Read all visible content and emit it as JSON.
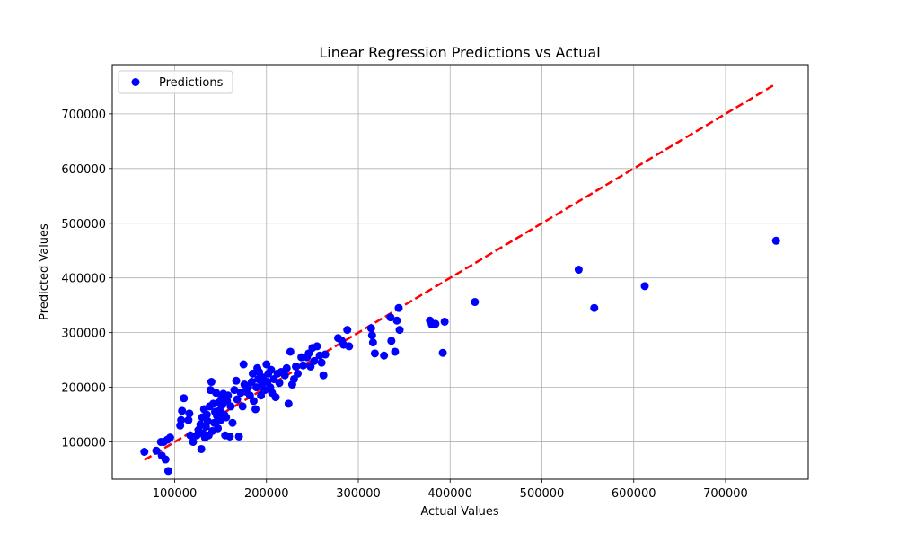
{
  "chart_data": {
    "type": "scatter",
    "title": "Linear Regression Predictions vs Actual",
    "xlabel": "Actual Values",
    "ylabel": "Predicted Values",
    "xlim": [
      32000,
      790000
    ],
    "ylim": [
      32000,
      790000
    ],
    "xticks": [
      100000,
      200000,
      300000,
      400000,
      500000,
      600000,
      700000
    ],
    "yticks": [
      100000,
      200000,
      300000,
      400000,
      500000,
      600000,
      700000
    ],
    "grid": true,
    "legend": {
      "placement": "top-left",
      "entries": [
        "Predictions"
      ]
    },
    "colors": {
      "points": "#0000ff",
      "reference_line": "#ff0000"
    },
    "reference_line": {
      "style": "dashed",
      "x": [
        67000,
        755000
      ],
      "y": [
        67000,
        755000
      ]
    },
    "series": [
      {
        "name": "Predictions",
        "points": [
          [
            67000,
            82000
          ],
          [
            80000,
            84000
          ],
          [
            85000,
            100000
          ],
          [
            86000,
            75000
          ],
          [
            88000,
            100000
          ],
          [
            90000,
            68000
          ],
          [
            92000,
            104000
          ],
          [
            93000,
            47000
          ],
          [
            95000,
            108000
          ],
          [
            106000,
            130000
          ],
          [
            107000,
            140000
          ],
          [
            108000,
            157000
          ],
          [
            110000,
            180000
          ],
          [
            115000,
            140000
          ],
          [
            116000,
            152000
          ],
          [
            117000,
            112000
          ],
          [
            120000,
            100000
          ],
          [
            124000,
            112000
          ],
          [
            126000,
            122000
          ],
          [
            128000,
            132000
          ],
          [
            129000,
            87000
          ],
          [
            130000,
            145000
          ],
          [
            131000,
            115000
          ],
          [
            132000,
            160000
          ],
          [
            133000,
            108000
          ],
          [
            134000,
            128000
          ],
          [
            135000,
            150000
          ],
          [
            136000,
            138000
          ],
          [
            137000,
            112000
          ],
          [
            138000,
            165000
          ],
          [
            139000,
            195000
          ],
          [
            140000,
            210000
          ],
          [
            141000,
            120000
          ],
          [
            142000,
            170000
          ],
          [
            143000,
            135000
          ],
          [
            144000,
            155000
          ],
          [
            145000,
            190000
          ],
          [
            146000,
            148000
          ],
          [
            147000,
            125000
          ],
          [
            148000,
            172000
          ],
          [
            149000,
            158000
          ],
          [
            150000,
            140000
          ],
          [
            151000,
            180000
          ],
          [
            152000,
            168000
          ],
          [
            153000,
            188000
          ],
          [
            154000,
            150000
          ],
          [
            155000,
            112000
          ],
          [
            156000,
            145000
          ],
          [
            157000,
            175000
          ],
          [
            158000,
            185000
          ],
          [
            160000,
            110000
          ],
          [
            161000,
            165000
          ],
          [
            163000,
            135000
          ],
          [
            165000,
            195000
          ],
          [
            167000,
            212000
          ],
          [
            168000,
            178000
          ],
          [
            170000,
            110000
          ],
          [
            172000,
            190000
          ],
          [
            174000,
            165000
          ],
          [
            175000,
            242000
          ],
          [
            176000,
            205000
          ],
          [
            178000,
            192000
          ],
          [
            180000,
            200000
          ],
          [
            182000,
            185000
          ],
          [
            184000,
            210000
          ],
          [
            185000,
            225000
          ],
          [
            186000,
            175000
          ],
          [
            188000,
            160000
          ],
          [
            189000,
            200000
          ],
          [
            190000,
            235000
          ],
          [
            191000,
            215000
          ],
          [
            192000,
            228000
          ],
          [
            194000,
            185000
          ],
          [
            195000,
            205000
          ],
          [
            196000,
            218000
          ],
          [
            198000,
            195000
          ],
          [
            200000,
            242000
          ],
          [
            201000,
            210000
          ],
          [
            202000,
            225000
          ],
          [
            204000,
            200000
          ],
          [
            205000,
            232000
          ],
          [
            206000,
            190000
          ],
          [
            208000,
            215000
          ],
          [
            210000,
            182000
          ],
          [
            212000,
            225000
          ],
          [
            214000,
            208000
          ],
          [
            216000,
            228000
          ],
          [
            220000,
            222000
          ],
          [
            222000,
            235000
          ],
          [
            224000,
            170000
          ],
          [
            226000,
            265000
          ],
          [
            228000,
            205000
          ],
          [
            230000,
            215000
          ],
          [
            232000,
            238000
          ],
          [
            234000,
            225000
          ],
          [
            238000,
            255000
          ],
          [
            240000,
            240000
          ],
          [
            244000,
            255000
          ],
          [
            246000,
            262000
          ],
          [
            248000,
            238000
          ],
          [
            250000,
            272000
          ],
          [
            252000,
            248000
          ],
          [
            255000,
            275000
          ],
          [
            258000,
            258000
          ],
          [
            260000,
            245000
          ],
          [
            262000,
            222000
          ],
          [
            264000,
            260000
          ],
          [
            278000,
            290000
          ],
          [
            282000,
            285000
          ],
          [
            284000,
            278000
          ],
          [
            288000,
            305000
          ],
          [
            290000,
            275000
          ],
          [
            314000,
            308000
          ],
          [
            315000,
            295000
          ],
          [
            316000,
            282000
          ],
          [
            318000,
            262000
          ],
          [
            328000,
            258000
          ],
          [
            335000,
            328000
          ],
          [
            336000,
            285000
          ],
          [
            340000,
            265000
          ],
          [
            342000,
            322000
          ],
          [
            344000,
            345000
          ],
          [
            345000,
            305000
          ],
          [
            378000,
            322000
          ],
          [
            380000,
            315000
          ],
          [
            384000,
            316000
          ],
          [
            392000,
            263000
          ],
          [
            394000,
            320000
          ],
          [
            427000,
            356000
          ],
          [
            540000,
            415000
          ],
          [
            557000,
            345000
          ],
          [
            612000,
            385000
          ],
          [
            755000,
            468000
          ]
        ]
      }
    ]
  }
}
